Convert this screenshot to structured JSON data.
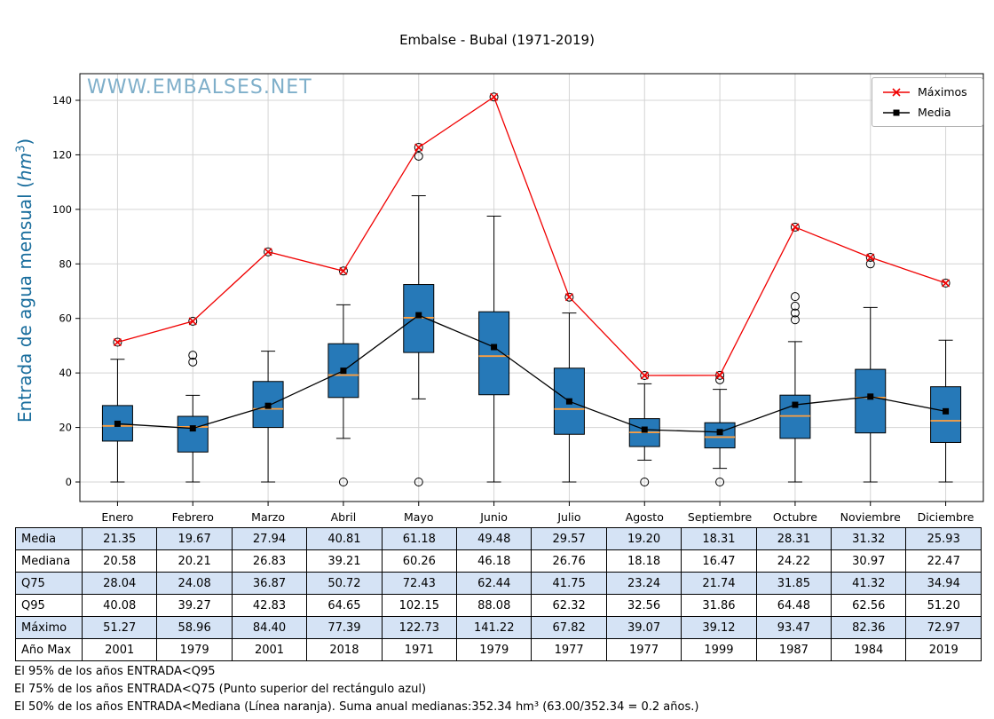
{
  "title": "Embalse - Bubal (1971-2019)",
  "watermark": "WWW.EMBALSES.NET",
  "ylabel": {
    "prefix": "Entrada de agua mensual (",
    "unit": "hm",
    "exponent": "3",
    "suffix": ")"
  },
  "chart_data": {
    "type": "boxplot",
    "title": "Embalse - Bubal (1971-2019)",
    "ylabel": "Entrada de agua mensual (hm³)",
    "ylim": [
      -7,
      150
    ],
    "yticks": [
      0,
      20,
      40,
      60,
      80,
      100,
      120,
      140
    ],
    "grid": true,
    "legend_position": "top-right",
    "categories": [
      "Enero",
      "Febrero",
      "Marzo",
      "Abril",
      "Mayo",
      "Junio",
      "Julio",
      "Agosto",
      "Septiembre",
      "Octubre",
      "Noviembre",
      "Diciembre"
    ],
    "series": [
      {
        "name": "Máximos",
        "type": "line",
        "marker": "x",
        "color": "#f00000",
        "values": [
          51.27,
          58.96,
          84.4,
          77.39,
          122.73,
          141.22,
          67.82,
          39.07,
          39.12,
          93.47,
          82.36,
          72.97
        ]
      },
      {
        "name": "Media",
        "type": "line",
        "marker": "square",
        "color": "#000000",
        "values": [
          21.35,
          19.67,
          27.94,
          40.81,
          61.18,
          49.48,
          29.57,
          19.2,
          18.31,
          28.31,
          31.32,
          25.93
        ]
      }
    ],
    "box_color": "#2679b8",
    "median_color": "#ffa040",
    "boxes": [
      {
        "q1": 15.0,
        "med": 20.58,
        "q3": 28.04,
        "lo": 0.0,
        "hi": 45.0,
        "outliers": [
          51.27
        ]
      },
      {
        "q1": 11.0,
        "med": 20.21,
        "q3": 24.08,
        "lo": 0.0,
        "hi": 31.8,
        "outliers": [
          44.0,
          46.5,
          58.96
        ]
      },
      {
        "q1": 20.0,
        "med": 26.83,
        "q3": 36.87,
        "lo": 0.0,
        "hi": 48.0,
        "outliers": [
          84.4
        ]
      },
      {
        "q1": 31.0,
        "med": 39.21,
        "q3": 50.72,
        "lo": 16.0,
        "hi": 65.0,
        "outliers": [
          0.0,
          77.39
        ]
      },
      {
        "q1": 47.5,
        "med": 60.26,
        "q3": 72.43,
        "lo": 30.5,
        "hi": 105.0,
        "outliers": [
          0.0,
          119.5,
          122.73
        ]
      },
      {
        "q1": 32.0,
        "med": 46.18,
        "q3": 62.44,
        "lo": 0.0,
        "hi": 97.5,
        "outliers": [
          141.22
        ]
      },
      {
        "q1": 17.5,
        "med": 26.76,
        "q3": 41.75,
        "lo": 0.0,
        "hi": 62.0,
        "outliers": [
          67.82
        ]
      },
      {
        "q1": 13.0,
        "med": 18.18,
        "q3": 23.24,
        "lo": 8.0,
        "hi": 36.0,
        "outliers": [
          0.0,
          39.07
        ]
      },
      {
        "q1": 12.5,
        "med": 16.47,
        "q3": 21.74,
        "lo": 5.0,
        "hi": 34.0,
        "outliers": [
          0.0,
          37.5,
          39.12
        ]
      },
      {
        "q1": 16.0,
        "med": 24.22,
        "q3": 31.85,
        "lo": 0.0,
        "hi": 51.5,
        "outliers": [
          59.5,
          62.0,
          64.5,
          68.0,
          93.47
        ]
      },
      {
        "q1": 18.0,
        "med": 30.97,
        "q3": 41.32,
        "lo": 0.0,
        "hi": 64.0,
        "outliers": [
          80.0,
          82.36
        ]
      },
      {
        "q1": 14.5,
        "med": 22.47,
        "q3": 34.94,
        "lo": 0.0,
        "hi": 52.0,
        "outliers": [
          72.97
        ]
      }
    ]
  },
  "table": {
    "row_labels": [
      "Media",
      "Mediana",
      "Q75",
      "Q95",
      "Máximo",
      "Año Max"
    ],
    "shaded_rows": [
      0,
      2,
      4
    ],
    "rows": [
      [
        "21.35",
        "19.67",
        "27.94",
        "40.81",
        "61.18",
        "49.48",
        "29.57",
        "19.20",
        "18.31",
        "28.31",
        "31.32",
        "25.93"
      ],
      [
        "20.58",
        "20.21",
        "26.83",
        "39.21",
        "60.26",
        "46.18",
        "26.76",
        "18.18",
        "16.47",
        "24.22",
        "30.97",
        "22.47"
      ],
      [
        "28.04",
        "24.08",
        "36.87",
        "50.72",
        "72.43",
        "62.44",
        "41.75",
        "23.24",
        "21.74",
        "31.85",
        "41.32",
        "34.94"
      ],
      [
        "40.08",
        "39.27",
        "42.83",
        "64.65",
        "102.15",
        "88.08",
        "62.32",
        "32.56",
        "31.86",
        "64.48",
        "62.56",
        "51.20"
      ],
      [
        "51.27",
        "58.96",
        "84.40",
        "77.39",
        "122.73",
        "141.22",
        "67.82",
        "39.07",
        "39.12",
        "93.47",
        "82.36",
        "72.97"
      ],
      [
        "2001",
        "1979",
        "2001",
        "2018",
        "1971",
        "1979",
        "1977",
        "1977",
        "1999",
        "1987",
        "1984",
        "2019"
      ]
    ]
  },
  "footnotes": [
    "El 95% de los años ENTRADA<Q95",
    "El 75% de los años ENTRADA<Q75 (Punto superior del rectángulo azul)",
    "El 50% de los años ENTRADA<Mediana (Línea naranja). Suma anual medianas:352.34 hm³ (63.00/352.34 = 0.2 años.)"
  ]
}
